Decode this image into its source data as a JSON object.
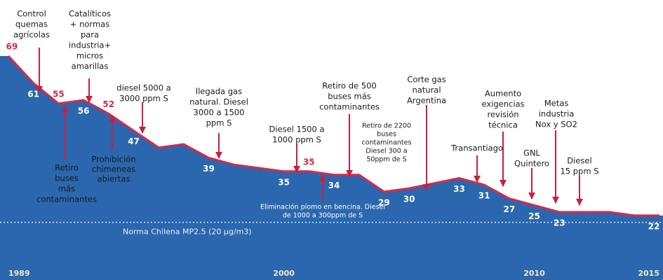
{
  "chart_data": {
    "type": "area",
    "x": [
      1989,
      1990,
      1991,
      1992,
      1993,
      1994,
      1995,
      1996,
      1997,
      1998,
      1999,
      2000,
      2001,
      2002,
      2003,
      2004,
      2005,
      2006,
      2007,
      2008,
      2009,
      2010,
      2011,
      2012,
      2013,
      2014,
      2015
    ],
    "values": [
      69,
      61,
      55,
      56,
      52,
      47,
      42,
      43,
      39,
      37,
      36,
      35,
      35,
      34,
      34,
      29,
      30,
      31.5,
      33,
      31,
      27,
      25,
      23,
      23,
      23,
      22,
      22
    ],
    "value_labels": [
      "69",
      "61",
      "55",
      "56",
      "52",
      "47",
      null,
      null,
      "39",
      null,
      null,
      "35",
      "35",
      "34",
      null,
      "29",
      "30",
      null,
      "33",
      "31",
      "27",
      "25",
      "23",
      null,
      null,
      null,
      "22"
    ],
    "xlim": [
      1989,
      2015
    ],
    "xticks": [
      1989,
      2000,
      2010,
      2015
    ],
    "ylim": [
      3,
      85.5
    ],
    "color": "#2a67ae",
    "line_color": "#d8294a",
    "reference_line": {
      "value": 20,
      "label": "Norma Chilena MP2.5 (20 µg/m3)"
    },
    "annotations": [
      {
        "text": [
          "Control",
          "quemas",
          "agrícolas"
        ]
      },
      {
        "text": [
          "Catalíticos",
          "+ normas",
          "para",
          "industria+",
          "micros",
          "amarillas"
        ]
      },
      {
        "text": [
          "Retiro",
          "buses",
          "más",
          "contaminantes"
        ]
      },
      {
        "text": [
          "Prohibición",
          "chimeneas",
          "abiertas"
        ]
      },
      {
        "text": [
          "diesel 5000 a",
          "3000 ppm S"
        ]
      },
      {
        "text": [
          "llegada gas",
          "natural. Diesel",
          "3000 a 1500",
          "ppm S"
        ]
      },
      {
        "text": [
          "Diesel 1500 a",
          "1000 ppm S"
        ]
      },
      {
        "text": [
          "Eliminación plomo en bencina. Diesel",
          "de 1000 a 300ppm de S"
        ]
      },
      {
        "text": [
          "Retiro de 500",
          "buses más",
          "contaminantes"
        ]
      },
      {
        "text": [
          "Retiro de 2200",
          "buses",
          "contaminantes",
          "Diesel 300 a",
          "50ppm de S"
        ]
      },
      {
        "text": [
          "Corte gas",
          "natural",
          "Argentina"
        ]
      },
      {
        "text": [
          "Transantiago"
        ]
      },
      {
        "text": [
          "Aumento",
          "exigencias",
          "revisión",
          "técnica"
        ]
      },
      {
        "text": [
          "GNL",
          "Quintero"
        ]
      },
      {
        "text": [
          "Metas",
          "industria",
          "Nox y SO2"
        ]
      },
      {
        "text": [
          "Diesel",
          "15 ppm S"
        ]
      }
    ]
  }
}
